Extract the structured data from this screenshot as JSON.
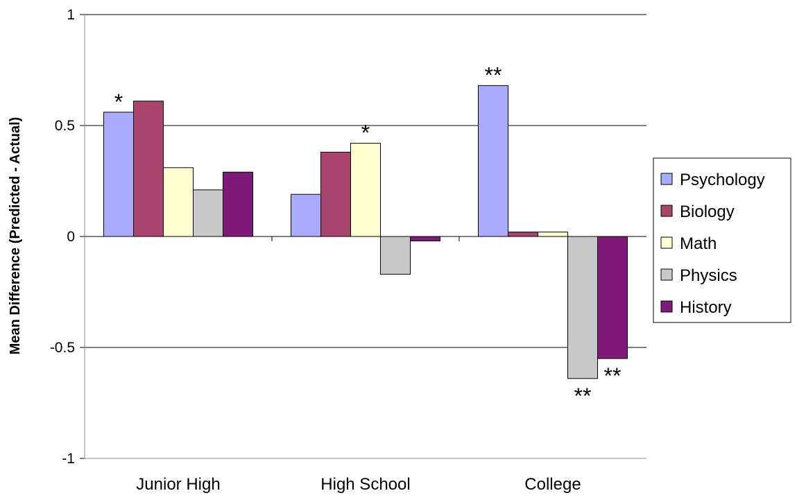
{
  "chart_data": {
    "type": "bar",
    "title": "",
    "xlabel": "",
    "ylabel": "Mean Difference (Predicted - Actual)",
    "ylim": [
      -1,
      1
    ],
    "yticks": [
      "-1",
      "-0.5",
      "0",
      "0.5",
      "1"
    ],
    "ytick_values": [
      -1,
      -0.5,
      0,
      0.5,
      1
    ],
    "grid": true,
    "legend_position": "right",
    "categories": [
      "Junior High",
      "High School",
      "College"
    ],
    "series": [
      {
        "name": "Psychology",
        "color": "#aaaaff",
        "values": [
          0.56,
          0.19,
          0.68
        ]
      },
      {
        "name": "Biology",
        "color": "#a9446c",
        "values": [
          0.61,
          0.38,
          0.02
        ]
      },
      {
        "name": "Math",
        "color": "#ffffd2",
        "values": [
          0.31,
          0.42,
          0.02
        ]
      },
      {
        "name": "Physics",
        "color": "#c8c8c8",
        "values": [
          0.21,
          -0.17,
          -0.64
        ]
      },
      {
        "name": "History",
        "color": "#7f1a78",
        "values": [
          0.29,
          -0.02,
          -0.55
        ]
      }
    ],
    "annotations": [
      {
        "category": 0,
        "series": 0,
        "text": "*"
      },
      {
        "category": 1,
        "series": 2,
        "text": "*"
      },
      {
        "category": 2,
        "series": 0,
        "text": "**"
      },
      {
        "category": 2,
        "series": 3,
        "text": "**"
      },
      {
        "category": 2,
        "series": 4,
        "text": "**"
      }
    ]
  }
}
